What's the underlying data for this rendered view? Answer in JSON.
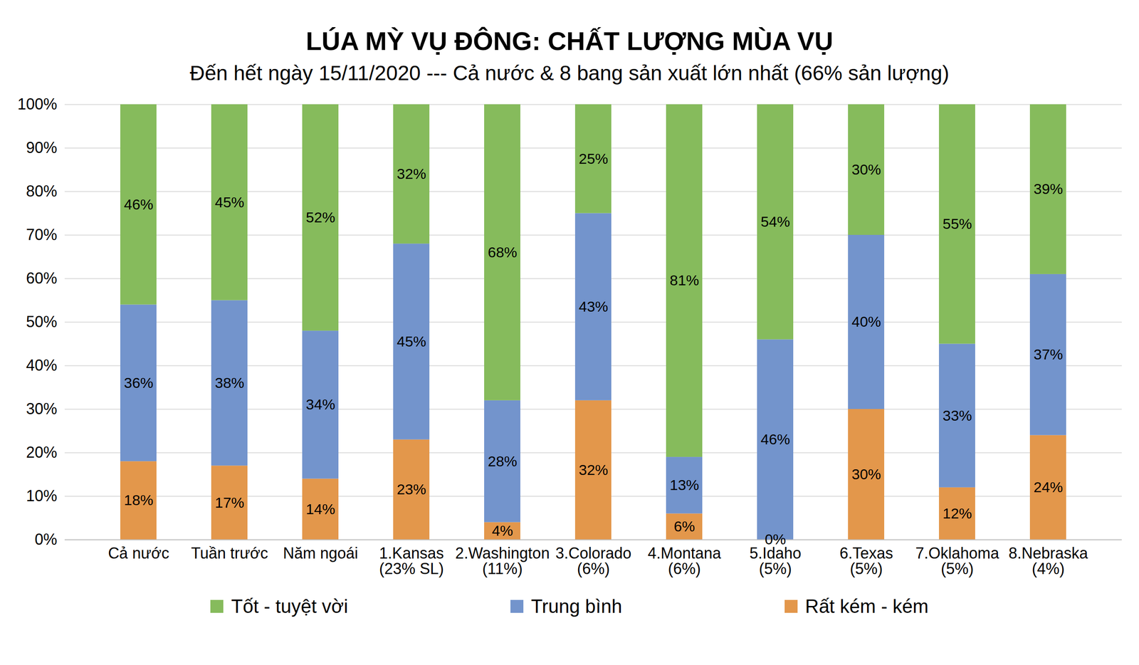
{
  "chart_data": {
    "type": "bar",
    "title": "LÚA MỲ VỤ ĐÔNG: CHẤT LƯỢNG MÙA VỤ",
    "subtitle": "Đến hết ngày 15/11/2020 --- Cả nước & 8 bang sản xuất lớn nhất (66% sản lượng)",
    "categories": [
      "Cả nước",
      "Tuần trước",
      "Năm ngoái",
      "1.Kansas\n(23% SL)",
      "2.Washington\n(11%)",
      "3.Colorado\n(6%)",
      "4.Montana\n(6%)",
      "5.Idaho\n(5%)",
      "6.Texas\n(5%)",
      "7.Oklahoma\n(5%)",
      "8.Nebraska\n(4%)"
    ],
    "series": [
      {
        "name": "Rất kém - kém",
        "color": "#e3974b",
        "values": [
          18,
          17,
          14,
          23,
          4,
          32,
          6,
          0,
          30,
          12,
          24
        ],
        "value_labels": [
          "18%",
          "17%",
          "14%",
          "23%",
          "4%",
          "32%",
          "6%",
          "0%",
          "30%",
          "12%",
          "24%"
        ]
      },
      {
        "name": "Trung bình",
        "color": "#7394cc",
        "values": [
          36,
          38,
          34,
          45,
          28,
          43,
          13,
          46,
          40,
          33,
          37
        ],
        "value_labels": [
          "36%",
          "38%",
          "34%",
          "45%",
          "28%",
          "43%",
          "13%",
          "46%",
          "40%",
          "33%",
          "37%"
        ]
      },
      {
        "name": "Tốt - tuyệt vời",
        "color": "#86bb5c",
        "values": [
          46,
          45,
          52,
          32,
          68,
          25,
          81,
          54,
          30,
          55,
          39
        ],
        "value_labels": [
          "46%",
          "45%",
          "52%",
          "32%",
          "68%",
          "25%",
          "81%",
          "54%",
          "30%",
          "55%",
          "39%"
        ]
      }
    ],
    "ylim": [
      0,
      100
    ],
    "yticks": [
      {
        "value": 0,
        "label": "0%"
      },
      {
        "value": 10,
        "label": "10%"
      },
      {
        "value": 20,
        "label": "20%"
      },
      {
        "value": 30,
        "label": "30%"
      },
      {
        "value": 40,
        "label": "40%"
      },
      {
        "value": 50,
        "label": "50%"
      },
      {
        "value": 60,
        "label": "60%"
      },
      {
        "value": 70,
        "label": "70%"
      },
      {
        "value": 80,
        "label": "80%"
      },
      {
        "value": 90,
        "label": "90%"
      },
      {
        "value": 100,
        "label": "100%"
      }
    ],
    "grid": true,
    "stacked": true,
    "data_labels": true,
    "legend": "bottom"
  }
}
